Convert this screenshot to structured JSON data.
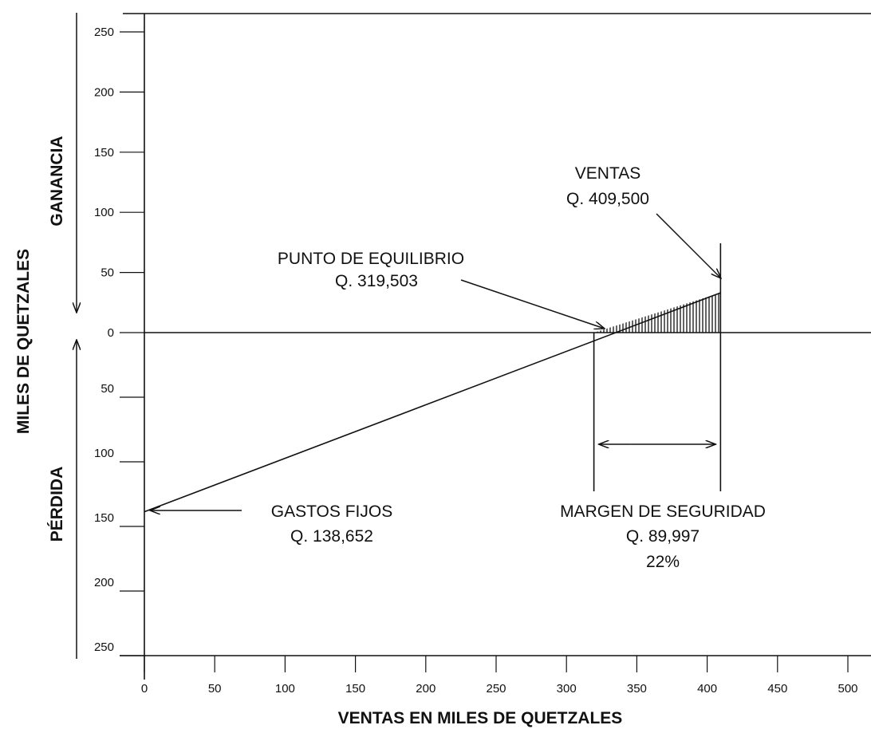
{
  "chart_data": {
    "type": "line",
    "title": "",
    "xlabel": "VENTAS EN MILES DE QUETZALES",
    "ylabel": "MILES DE QUETZALES",
    "region_labels": {
      "upper": "GANANCIA",
      "lower": "PÉRDIDA"
    },
    "xlim": [
      0,
      500
    ],
    "ylim": [
      -250,
      250
    ],
    "x_ticks": [
      0,
      50,
      100,
      150,
      200,
      250,
      300,
      350,
      400,
      450,
      500
    ],
    "y_ticks_upper": [
      250,
      200,
      150,
      100,
      50,
      0
    ],
    "y_ticks_lower": [
      50,
      100,
      150,
      200,
      250
    ],
    "series": [
      {
        "x": [
          0,
          409.5
        ],
        "y": [
          -138.652,
          33.1
        ]
      }
    ],
    "markers": {
      "break_even_x": 319.503,
      "sales_x": 409.5,
      "sales_profit_y": 33.1
    },
    "annotations": [
      {
        "lines": [
          "VENTAS",
          "Q. 409,500"
        ]
      },
      {
        "lines": [
          "PUNTO DE EQUILIBRIO",
          "Q. 319,503"
        ]
      },
      {
        "lines": [
          "GASTOS FIJOS",
          "Q. 138,652"
        ]
      },
      {
        "lines": [
          "MARGEN DE SEGURIDAD",
          "Q. 89,997",
          "22%"
        ]
      }
    ]
  }
}
